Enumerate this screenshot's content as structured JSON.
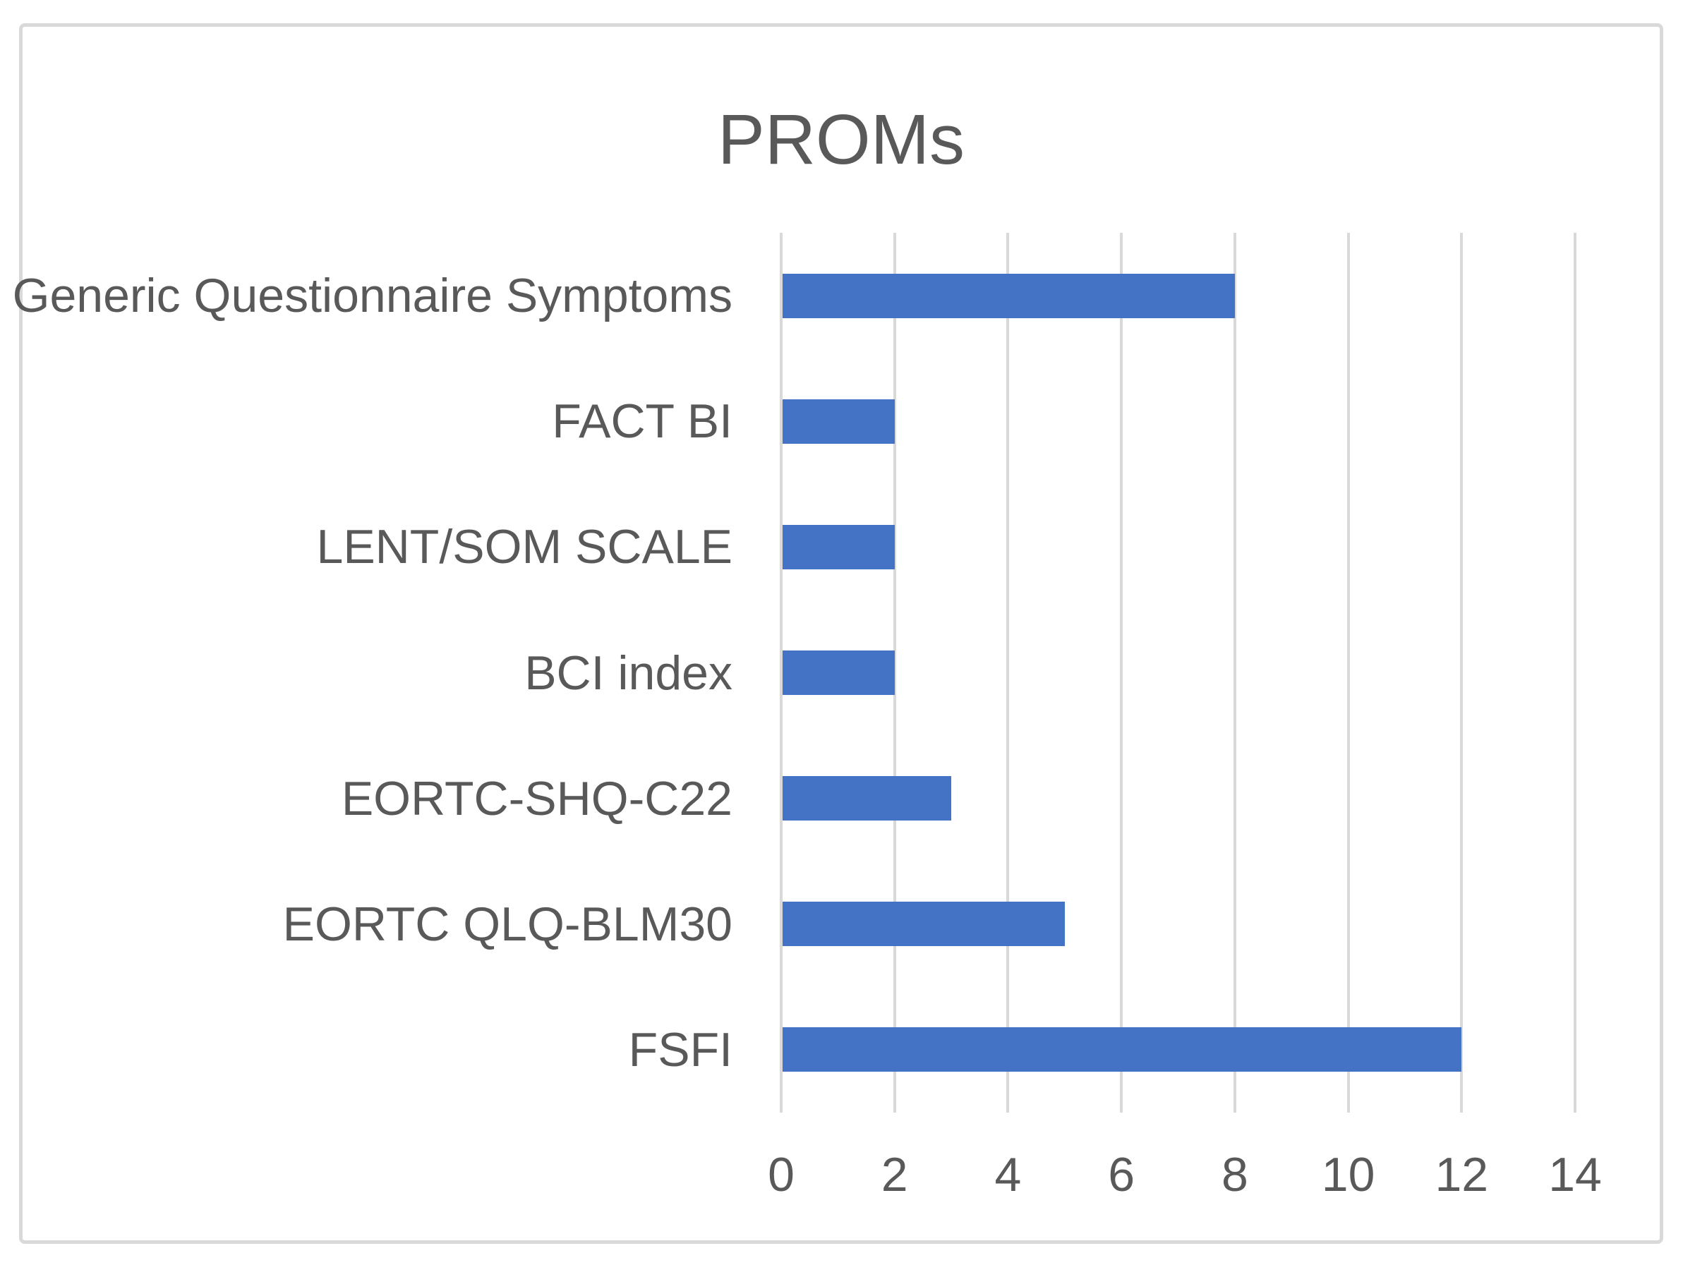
{
  "chart_data": {
    "type": "bar",
    "orientation": "horizontal",
    "title": "PROMs",
    "categories": [
      "Generic Questionnaire Symptoms",
      "FACT BI",
      "LENT/SOM SCALE",
      "BCI index",
      "EORTC-SHQ-C22",
      "EORTC QLQ-BLM30",
      "FSFI"
    ],
    "values": [
      8,
      2,
      2,
      2,
      3,
      5,
      12
    ],
    "categories_order": "top-to-bottom",
    "xlabel": "",
    "ylabel": "",
    "xlim": [
      0,
      14
    ],
    "xticks": [
      0,
      2,
      4,
      6,
      8,
      10,
      12,
      14
    ],
    "grid": "vertical-gridlines-on",
    "legend": "none",
    "colors": {
      "bar": "#4472C4",
      "gridline": "#D9D9D9",
      "text": "#595959",
      "frame_border": "#D9D9D9",
      "background": "#FFFFFF"
    }
  }
}
